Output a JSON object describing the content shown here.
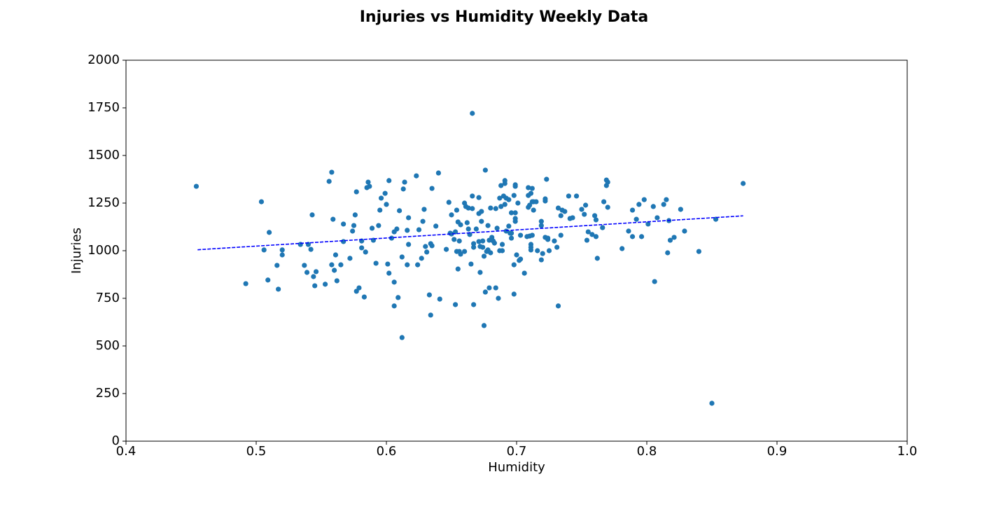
{
  "chart_data": {
    "type": "scatter",
    "title": "Injuries vs Humidity Weekly Data",
    "x_label": "Humidity",
    "y_label": "Injuries",
    "xlim": [
      0.4,
      1.0
    ],
    "ylim": [
      0,
      2000
    ],
    "xticks": [
      0.4,
      0.5,
      0.6,
      0.7,
      0.8,
      0.9,
      {
        "value": 1,
        "label": "1.0"
      }
    ],
    "yticks": [
      0,
      250,
      500,
      750,
      1000,
      1250,
      1500,
      1750,
      2000
    ],
    "series": [
      {
        "color": "#1f77b4",
        "x": [
          0.454,
          0.492,
          0.504,
          0.506,
          0.509,
          0.51,
          0.516,
          0.517,
          0.52,
          0.52,
          0.534,
          0.537,
          0.539,
          0.54,
          0.542,
          0.543,
          0.544,
          0.545,
          0.546,
          0.553,
          0.556,
          0.558,
          0.558,
          0.559,
          0.56,
          0.561,
          0.562,
          0.565,
          0.567,
          0.567,
          0.572,
          0.574,
          0.575,
          0.576,
          0.577,
          0.577,
          0.579,
          0.581,
          0.581,
          0.583,
          0.584,
          0.585,
          0.586,
          0.587,
          0.589,
          0.59,
          0.592,
          0.594,
          0.595,
          0.596,
          0.599,
          0.6,
          0.601,
          0.602,
          0.602,
          0.604,
          0.606,
          0.606,
          0.606,
          0.608,
          0.609,
          0.61,
          0.612,
          0.612,
          0.613,
          0.614,
          0.616,
          0.616,
          0.617,
          0.617,
          0.623,
          0.624,
          0.625,
          0.627,
          0.628,
          0.629,
          0.63,
          0.631,
          0.633,
          0.634,
          0.634,
          0.635,
          0.635,
          0.638,
          0.64,
          0.641,
          0.646,
          0.648,
          0.649,
          0.65,
          0.65,
          0.652,
          0.653,
          0.653,
          0.654,
          0.654,
          0.655,
          0.655,
          0.656,
          0.656,
          0.657,
          0.657,
          0.66,
          0.66,
          0.661,
          0.662,
          0.663,
          0.663,
          0.664,
          0.665,
          0.666,
          0.666,
          0.666,
          0.667,
          0.667,
          0.667,
          0.669,
          0.671,
          0.671,
          0.671,
          0.672,
          0.672,
          0.673,
          0.673,
          0.674,
          0.674,
          0.675,
          0.675,
          0.676,
          0.676,
          0.677,
          0.678,
          0.678,
          0.679,
          0.679,
          0.68,
          0.68,
          0.681,
          0.682,
          0.683,
          0.684,
          0.684,
          0.685,
          0.686,
          0.687,
          0.687,
          0.688,
          0.688,
          0.689,
          0.689,
          0.69,
          0.691,
          0.691,
          0.691,
          0.692,
          0.692,
          0.694,
          0.694,
          0.695,
          0.696,
          0.696,
          0.696,
          0.698,
          0.698,
          0.698,
          0.699,
          0.699,
          0.699,
          0.699,
          0.699,
          0.7,
          0.701,
          0.702,
          0.703,
          0.703,
          0.706,
          0.708,
          0.709,
          0.709,
          0.709,
          0.71,
          0.71,
          0.711,
          0.711,
          0.711,
          0.711,
          0.712,
          0.712,
          0.712,
          0.713,
          0.713,
          0.715,
          0.716,
          0.719,
          0.719,
          0.719,
          0.72,
          0.722,
          0.722,
          0.722,
          0.723,
          0.724,
          0.724,
          0.725,
          0.729,
          0.731,
          0.732,
          0.732,
          0.734,
          0.734,
          0.735,
          0.737,
          0.74,
          0.741,
          0.743,
          0.746,
          0.75,
          0.752,
          0.753,
          0.754,
          0.755,
          0.758,
          0.76,
          0.761,
          0.761,
          0.762,
          0.766,
          0.767,
          0.769,
          0.769,
          0.77,
          0.77,
          0.781,
          0.786,
          0.789,
          0.789,
          0.792,
          0.794,
          0.796,
          0.798,
          0.801,
          0.805,
          0.806,
          0.808,
          0.813,
          0.815,
          0.816,
          0.817,
          0.818,
          0.821,
          0.826,
          0.829,
          0.84,
          0.85,
          0.853,
          0.874
        ],
        "values": [
          1338,
          827,
          1257,
          1004,
          846,
          1096,
          923,
          798,
          1004,
          978,
          1033,
          923,
          886,
          1033,
          1007,
          1188,
          864,
          816,
          890,
          824,
          1364,
          1412,
          926,
          1165,
          897,
          978,
          842,
          926,
          1048,
          1140,
          960,
          1103,
          1132,
          1188,
          1309,
          787,
          805,
          1051,
          1015,
          757,
          993,
          1331,
          1360,
          1338,
          1118,
          1055,
          934,
          1132,
          1213,
          1276,
          1301,
          1243,
          930,
          882,
          1368,
          1066,
          1099,
          835,
          710,
          1114,
          754,
          1210,
          967,
          544,
          1324,
          1360,
          1107,
          926,
          1173,
          1033,
          1393,
          926,
          1110,
          960,
          1154,
          1217,
          1022,
          993,
          768,
          1037,
          662,
          1327,
          1026,
          1129,
          1408,
          746,
          1007,
          1254,
          1092,
          1088,
          1188,
          1059,
          1099,
          717,
          996,
          1213,
          904,
          1151,
          996,
          1051,
          982,
          1136,
          996,
          1250,
          1232,
          1147,
          1224,
          1114,
          1085,
          930,
          1287,
          1221,
          1721,
          717,
          1018,
          1037,
          1114,
          1279,
          1048,
          1195,
          886,
          1022,
          1206,
          1154,
          1051,
          1018,
          971,
          607,
          1423,
          783,
          996,
          1004,
          1132,
          805,
          1055,
          1224,
          989,
          1070,
          1051,
          1040,
          805,
          1221,
          1118,
          750,
          1000,
          1276,
          1232,
          1342,
          1033,
          1000,
          1287,
          1353,
          1368,
          1243,
          1276,
          1103,
          1268,
          1129,
          1092,
          1199,
          1066,
          1092,
          926,
          772,
          1290,
          1346,
          1154,
          1169,
          1199,
          1338,
          978,
          1250,
          949,
          956,
          1081,
          882,
          1074,
          1290,
          1228,
          1331,
          1239,
          1077,
          1033,
          1301,
          1018,
          1004,
          1327,
          1081,
          1257,
          1213,
          1257,
          1257,
          1000,
          1132,
          952,
          1154,
          985,
          1272,
          1070,
          1261,
          1375,
          1066,
          1059,
          1000,
          1051,
          1018,
          1224,
          710,
          1184,
          1081,
          1213,
          1206,
          1287,
          1169,
          1173,
          1287,
          1217,
          1191,
          1239,
          1055,
          1099,
          1085,
          1184,
          1074,
          1162,
          960,
          1121,
          1257,
          1371,
          1342,
          1228,
          1360,
          1011,
          1103,
          1074,
          1213,
          1165,
          1243,
          1074,
          1268,
          1140,
          1232,
          838,
          1173,
          1243,
          1268,
          989,
          1158,
          1055,
          1070,
          1217,
          1103,
          996,
          199,
          1165,
          1353
        ]
      }
    ],
    "trendline": {
      "x": [
        0.455,
        0.874
      ],
      "values": [
        1005,
        1183
      ],
      "color": "#0000ff",
      "style": "dashed"
    }
  }
}
